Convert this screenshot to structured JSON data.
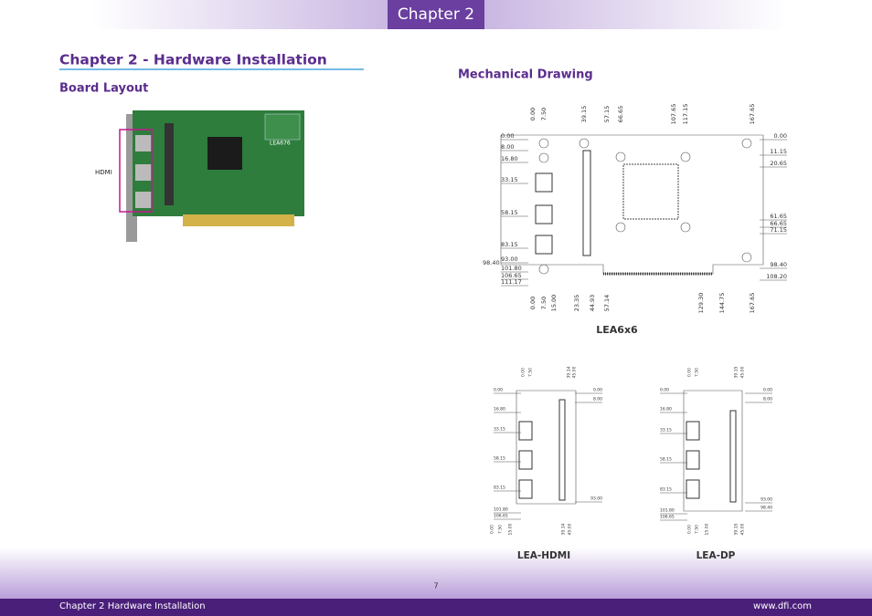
{
  "header": {
    "chapter_tab": "Chapter 2"
  },
  "page": {
    "title": "Chapter 2 - Hardware Installation",
    "board_layout": {
      "heading": "Board Layout",
      "hdmi_label": "HDMI",
      "board_marking": "LEA676"
    },
    "mechanical_drawing": {
      "heading": "Mechanical Drawing",
      "main": {
        "caption": "LEA6x6",
        "top": [
          "0.00",
          "7.50",
          "39.15",
          "57.15",
          "66.65",
          "107.65",
          "117.15",
          "167.65"
        ],
        "bottom": [
          "0.00",
          "7.50",
          "15.00",
          "23.35",
          "44.93",
          "57.14",
          "129.30",
          "144.75",
          "167.65"
        ],
        "left": [
          "0.00",
          "8.00",
          "16.80",
          "33.15",
          "58.15",
          "83.15",
          "93.00",
          "101.80",
          "106.65",
          "111.17"
        ],
        "left_outer": "98.40",
        "right": [
          "0.00",
          "11.15",
          "20.65",
          "61.65",
          "66.65",
          "71.15",
          "98.40",
          "108.20"
        ]
      },
      "hdmi": {
        "caption": "LEA-HDMI",
        "top": [
          "0.00",
          "7.50",
          "39.14",
          "45.00"
        ],
        "bottom": [
          "0.00",
          "7.50",
          "15.00",
          "39.14",
          "45.00"
        ],
        "left": [
          "0.00",
          "16.80",
          "33.15",
          "58.15",
          "83.15",
          "101.80",
          "106.65"
        ],
        "right": [
          "0.00",
          "8.00",
          "93.00"
        ]
      },
      "dp": {
        "caption": "LEA-DP",
        "top": [
          "0.00",
          "7.50",
          "39.15",
          "45.00"
        ],
        "bottom": [
          "0.00",
          "7.50",
          "15.00",
          "39.15",
          "45.00"
        ],
        "left": [
          "0.00",
          "16.80",
          "33.15",
          "58.15",
          "83.15",
          "101.80",
          "106.65"
        ],
        "right": [
          "0.00",
          "8.00",
          "93.00",
          "98.40"
        ]
      }
    }
  },
  "footer": {
    "page_number": "7",
    "left": "Chapter 2 Hardware Installation",
    "right": "www.dfi.com"
  }
}
